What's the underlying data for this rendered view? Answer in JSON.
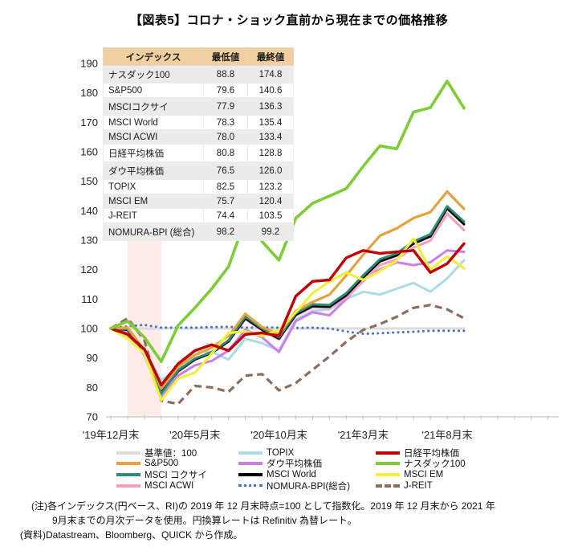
{
  "page": {
    "title": "【図表5】コロナ・ショック直前から現在までの価格推移"
  },
  "table": {
    "headers": [
      "インデックス",
      "最低値",
      "最終値"
    ],
    "header_bg": "#f2cf9e",
    "alt_row_bg": "#ebebeb",
    "rows": [
      [
        "ナスダック100",
        "88.8",
        "174.8"
      ],
      [
        "S&P500",
        "79.6",
        "140.6"
      ],
      [
        "MSCIコクサイ",
        "77.9",
        "136.3"
      ],
      [
        "MSCI World",
        "78.3",
        "135.4"
      ],
      [
        "MSCI ACWI",
        "78.0",
        "133.4"
      ],
      [
        "日経平均株価",
        "80.8",
        "128.8"
      ],
      [
        "ダウ平均株価",
        "76.5",
        "126.0"
      ],
      [
        "TOPIX",
        "82.5",
        "123.2"
      ],
      [
        "MSCI EM",
        "75.7",
        "120.4"
      ],
      [
        "J-REIT",
        "74.4",
        "103.5"
      ],
      [
        "NOMURA-BPI (総合)",
        "98.2",
        "99.2"
      ]
    ]
  },
  "legend": {
    "position": "bottom",
    "columns": [
      [
        {
          "label": "基準値：100",
          "color": "#dcdcdc",
          "style": "solid"
        },
        {
          "label": "S&P500",
          "color": "#e6a23c",
          "style": "solid"
        },
        {
          "label": "MSCI コクサイ",
          "color": "#2f8a78",
          "style": "solid"
        },
        {
          "label": "MSCI ACWI",
          "color": "#f2a0bd",
          "style": "solid"
        }
      ],
      [
        {
          "label": "TOPIX",
          "color": "#abdbe3",
          "style": "solid"
        },
        {
          "label": "ダウ平均株価",
          "color": "#c97fe8",
          "style": "solid"
        },
        {
          "label": "MSCI World",
          "color": "#000000",
          "style": "solid"
        },
        {
          "label": "NOMURA-BPI(総合)",
          "color": "#4472c4",
          "style": "dotted"
        }
      ],
      [
        {
          "label": "日経平均株価",
          "color": "#c00000",
          "style": "solid"
        },
        {
          "label": "ナスダック100",
          "color": "#7dcd36",
          "style": "solid"
        },
        {
          "label": "MSCI EM",
          "color": "#f3ef3d",
          "style": "solid"
        },
        {
          "label": "J-REIT",
          "color": "#8c6e5f",
          "style": "dashed"
        }
      ]
    ]
  },
  "notes": {
    "line1": "(注)各インデックス(円ベース、RI)の 2019 年 12 月末時点=100 として指数化。2019 年 12 月末から 2021 年",
    "line2": "9月末までの月次データを使用。円換算レートは Refinitiv 為替レート。",
    "line3": "(資料)Datastream、Bloomberg、QUICK から作成。"
  },
  "chart_data": {
    "type": "line",
    "title": "【図表5】コロナ・ショック直前から現在までの価格推移",
    "ylim": [
      70,
      190
    ],
    "y_ticks": [
      70,
      80,
      90,
      100,
      110,
      120,
      130,
      140,
      150,
      160,
      170,
      180,
      190
    ],
    "x_ticks": [
      {
        "m": 0,
        "label": "'19年12月末"
      },
      {
        "m": 5,
        "label": "'20年5月末"
      },
      {
        "m": 10,
        "label": "'20年10月末"
      },
      {
        "m": 15,
        "label": "'21年3月末"
      },
      {
        "m": 20,
        "label": "'21年8月末"
      }
    ],
    "x_categories": [
      "2019-12",
      "2020-01",
      "2020-02",
      "2020-03",
      "2020-04",
      "2020-05",
      "2020-06",
      "2020-07",
      "2020-08",
      "2020-09",
      "2020-10",
      "2020-11",
      "2020-12",
      "2021-01",
      "2021-02",
      "2021-03",
      "2021-04",
      "2021-05",
      "2021-06",
      "2021-07",
      "2021-08",
      "2021-09"
    ],
    "shaded_band": {
      "from": 1,
      "to": 3,
      "color": "#fcebe7"
    },
    "grid": false,
    "series": [
      {
        "name": "基準値：100",
        "color": "#dcdcdc",
        "style": "solid",
        "width": 3,
        "values": [
          100,
          100,
          100,
          100,
          100,
          100,
          100,
          100,
          100,
          100,
          100,
          100,
          100,
          100,
          100,
          100,
          100,
          100,
          100,
          100,
          100,
          100
        ]
      },
      {
        "name": "NOMURA-BPI(総合)",
        "color": "#4472c4",
        "style": "dotted",
        "width": 3,
        "values": [
          100,
          100.8,
          101.2,
          100.3,
          100.3,
          100.3,
          100.5,
          100.6,
          100.3,
          100.4,
          100.3,
          100.2,
          100.3,
          100,
          99,
          98.2,
          98.4,
          98.7,
          98.9,
          99.2,
          99.2,
          99.2
        ]
      },
      {
        "name": "J-REIT",
        "color": "#8c6e5f",
        "style": "dashed",
        "width": 3.2,
        "values": [
          100,
          103.5,
          96,
          75.5,
          74.4,
          80.5,
          80,
          78.5,
          84,
          84.5,
          79,
          81.5,
          86,
          90.5,
          95.5,
          99.5,
          101.5,
          104,
          107,
          108,
          106.5,
          103.5
        ]
      },
      {
        "name": "TOPIX",
        "color": "#abdbe3",
        "style": "solid",
        "width": 3,
        "values": [
          100,
          97.5,
          92.5,
          82.5,
          86.5,
          92.5,
          92,
          89.5,
          96.5,
          95,
          92.5,
          103,
          106,
          106.5,
          110,
          112.5,
          111.5,
          113.5,
          115.5,
          112.5,
          117,
          123.2
        ]
      },
      {
        "name": "ダウ平均株価",
        "color": "#c97fe8",
        "style": "solid",
        "width": 3,
        "values": [
          100,
          98.5,
          91,
          76.5,
          84,
          87.5,
          89,
          92.5,
          99.5,
          97,
          92,
          102.5,
          105.5,
          104.5,
          110,
          116.5,
          120,
          122.5,
          121.5,
          122.5,
          126.5,
          126
        ]
      },
      {
        "name": "MSCI ACWI",
        "color": "#f2a0bd",
        "style": "solid",
        "width": 3,
        "values": [
          100,
          99.5,
          91.8,
          78,
          85.3,
          89.3,
          91.8,
          95.8,
          103.2,
          99.3,
          96.3,
          104.3,
          107.2,
          107,
          110.5,
          116,
          121.5,
          123.5,
          127.5,
          129.8,
          139,
          133.4
        ]
      },
      {
        "name": "MSCI World",
        "color": "#000000",
        "style": "solid",
        "width": 3,
        "values": [
          100,
          99.6,
          92,
          78.3,
          85.5,
          89.5,
          91.7,
          95.6,
          103.5,
          99.6,
          96.6,
          104.7,
          107.6,
          107.4,
          111.3,
          117.3,
          122.8,
          124.8,
          128.8,
          131.3,
          140.8,
          135.4
        ]
      },
      {
        "name": "MSCI コクサイ",
        "color": "#2f8a78",
        "style": "solid",
        "width": 3,
        "values": [
          100,
          99.8,
          92.2,
          77.9,
          85.8,
          89.8,
          92,
          96,
          104,
          100,
          97,
          105.2,
          108.2,
          108,
          112,
          118,
          123.5,
          125.5,
          129.5,
          132,
          141.5,
          136.3
        ]
      },
      {
        "name": "S&P500",
        "color": "#e6a23c",
        "style": "solid",
        "width": 3.2,
        "values": [
          100,
          100.3,
          92.5,
          79.6,
          87,
          91,
          93.5,
          97.5,
          105,
          100.5,
          98,
          106,
          109,
          111.5,
          118,
          125,
          131.5,
          134,
          137.5,
          139.5,
          146.5,
          140.6
        ]
      },
      {
        "name": "MSCI EM",
        "color": "#f3ef3d",
        "style": "solid",
        "width": 3.2,
        "values": [
          100,
          96.5,
          91.5,
          75.7,
          83,
          85,
          91.5,
          98.5,
          99,
          97.5,
          99.5,
          105.5,
          112,
          116,
          119,
          116.5,
          119.5,
          123,
          130.5,
          120,
          124.5,
          120.4
        ]
      },
      {
        "name": "日経平均株価",
        "color": "#c00000",
        "style": "solid",
        "width": 3.4,
        "values": [
          100,
          98,
          93,
          80.8,
          88,
          92.5,
          94.5,
          92.5,
          98,
          98.5,
          97.5,
          111,
          116,
          116.5,
          124,
          126.5,
          125.5,
          126,
          126.5,
          119,
          122,
          128.8
        ]
      },
      {
        "name": "ナスダック100",
        "color": "#7dcd36",
        "style": "solid",
        "width": 3.6,
        "values": [
          100,
          102.5,
          97,
          88.8,
          101,
          107,
          113.5,
          121,
          137,
          129.5,
          123.2,
          137.5,
          142.5,
          145,
          147.5,
          155,
          162,
          161,
          173.5,
          175,
          184,
          174.8
        ]
      }
    ]
  }
}
